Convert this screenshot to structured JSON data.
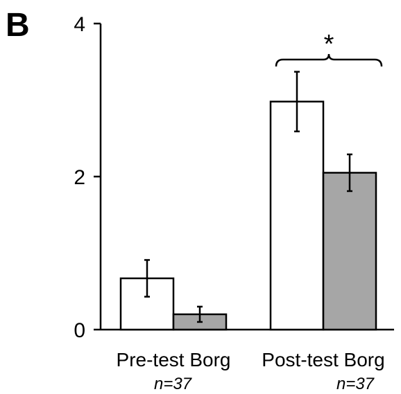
{
  "panel_label": "B",
  "chart_data": {
    "type": "bar",
    "categories": [
      "Pre-test Borg",
      "Post-test Borg"
    ],
    "sample_sizes": [
      "n=37",
      "n=37"
    ],
    "series": [
      {
        "color": "#ffffff",
        "values": [
          0.67,
          2.98
        ],
        "error": [
          0.24,
          0.39
        ]
      },
      {
        "color": "#a6a6a6",
        "values": [
          0.2,
          2.05
        ],
        "error": [
          0.1,
          0.24
        ]
      }
    ],
    "ylim": [
      0,
      4
    ],
    "yticks": [
      0,
      2,
      4
    ],
    "ytick_labels": [
      "0",
      "2",
      "4"
    ],
    "xlabel": "",
    "ylabel": "",
    "grid": false,
    "significance": {
      "category": 1,
      "label": "*"
    }
  }
}
